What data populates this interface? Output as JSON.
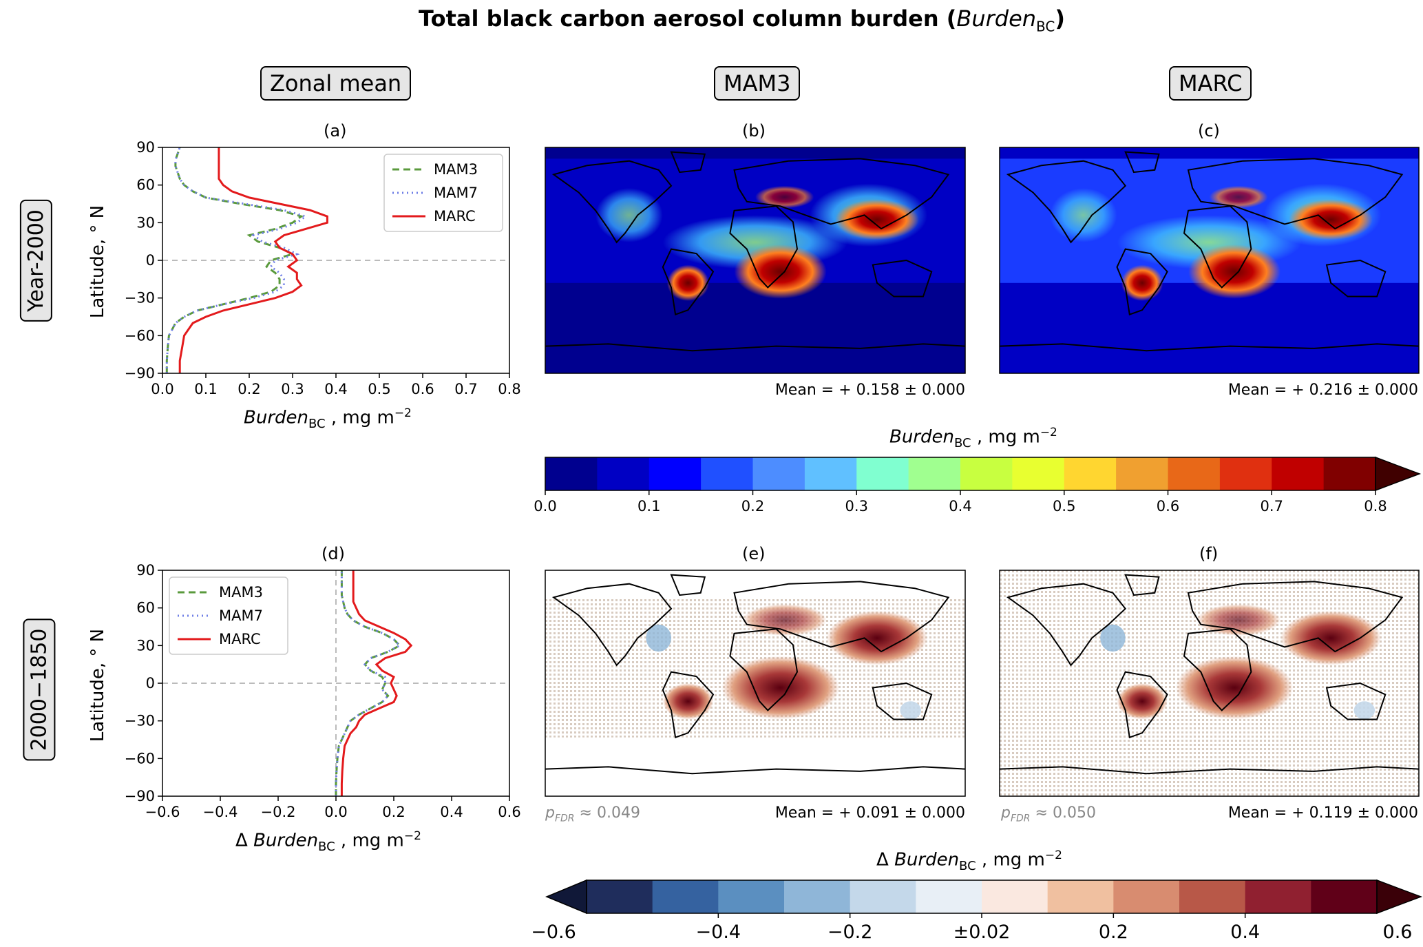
{
  "title_main": "Total black carbon aerosol column burden (",
  "title_var": "Burden",
  "title_sub": "BC",
  "title_end": ")",
  "column_headers": [
    "Zonal mean",
    "MAM3",
    "MARC"
  ],
  "row_headers": [
    "Year-2000",
    "2000−1850"
  ],
  "panel_labels": [
    "(a)",
    "(b)",
    "(c)",
    "(d)",
    "(e)",
    "(f)"
  ],
  "means": {
    "b": "Mean = + 0.158 ± 0.000",
    "c": "Mean = + 0.216 ± 0.000",
    "e": "Mean = + 0.091 ± 0.000",
    "f": "Mean = + 0.119 ± 0.000"
  },
  "pfdr": {
    "e": "≈ 0.049",
    "f": "≈ 0.050"
  },
  "pfdr_label": "p",
  "pfdr_sub": "FDR",
  "colors": {
    "MAM3": "#5a9a3c",
    "MAM7": "#6f7fe6",
    "MARC": "#e31a1c",
    "seq_cmap": [
      "#00008f",
      "#0000c4",
      "#0000ff",
      "#2050ff",
      "#4d8dff",
      "#60c0ff",
      "#80ffd0",
      "#a0ff90",
      "#c8ff40",
      "#e8ff30",
      "#ffd630",
      "#f0a030",
      "#e86818",
      "#e03010",
      "#c00000",
      "#800000"
    ],
    "div_cmap": [
      "#1f2d5c",
      "#3562a0",
      "#5b8fc0",
      "#8fb6d8",
      "#c4d8ea",
      "#e8eff6",
      "#fae8e0",
      "#f0c0a0",
      "#d88c70",
      "#b85848",
      "#902030",
      "#600018"
    ]
  },
  "chart_data": [
    {
      "type": "line",
      "panel": "(a)",
      "xlabel": "Burden_BC , mg m^-2",
      "ylabel": "Latitude, °N",
      "xlim": [
        0.0,
        0.8
      ],
      "ylim": [
        -90,
        90
      ],
      "xticks": [
        "0.0",
        "0.1",
        "0.2",
        "0.3",
        "0.4",
        "0.5",
        "0.6",
        "0.7",
        "0.8"
      ],
      "yticks": [
        "−90",
        "−60",
        "−30",
        "0",
        "30",
        "60",
        "90"
      ],
      "legend": "top-right",
      "x": [
        -90,
        -80,
        -70,
        -60,
        -50,
        -45,
        -40,
        -35,
        -30,
        -25,
        -20,
        -15,
        -10,
        -5,
        0,
        5,
        10,
        15,
        20,
        25,
        30,
        35,
        40,
        45,
        50,
        55,
        60,
        65,
        70,
        75,
        80,
        85,
        90
      ],
      "series": [
        {
          "name": "MAM3",
          "style": "dashed",
          "values": [
            0.01,
            0.01,
            0.012,
            0.015,
            0.03,
            0.05,
            0.08,
            0.14,
            0.2,
            0.25,
            0.27,
            0.27,
            0.26,
            0.24,
            0.25,
            0.3,
            0.27,
            0.22,
            0.2,
            0.26,
            0.3,
            0.32,
            0.27,
            0.18,
            0.1,
            0.07,
            0.05,
            0.04,
            0.035,
            0.03,
            0.03,
            0.035,
            0.04
          ]
        },
        {
          "name": "MAM7",
          "style": "dotted",
          "values": [
            0.01,
            0.01,
            0.012,
            0.015,
            0.03,
            0.05,
            0.08,
            0.14,
            0.21,
            0.26,
            0.28,
            0.28,
            0.27,
            0.25,
            0.26,
            0.31,
            0.28,
            0.23,
            0.21,
            0.27,
            0.31,
            0.33,
            0.28,
            0.19,
            0.1,
            0.07,
            0.05,
            0.04,
            0.035,
            0.03,
            0.03,
            0.035,
            0.04
          ]
        },
        {
          "name": "MARC",
          "style": "solid",
          "values": [
            0.04,
            0.04,
            0.045,
            0.05,
            0.07,
            0.1,
            0.14,
            0.2,
            0.26,
            0.3,
            0.32,
            0.31,
            0.31,
            0.29,
            0.31,
            0.3,
            0.27,
            0.26,
            0.28,
            0.33,
            0.38,
            0.38,
            0.34,
            0.27,
            0.2,
            0.16,
            0.14,
            0.13,
            0.13,
            0.13,
            0.13,
            0.13,
            0.13
          ]
        }
      ]
    },
    {
      "type": "line",
      "panel": "(d)",
      "xlabel": "Δ Burden_BC , mg m^-2",
      "ylabel": "Latitude, °N",
      "xlim": [
        -0.6,
        0.6
      ],
      "ylim": [
        -90,
        90
      ],
      "xticks": [
        "−0.6",
        "−0.4",
        "−0.2",
        "0.0",
        "0.2",
        "0.4",
        "0.6"
      ],
      "yticks": [
        "−90",
        "−60",
        "−30",
        "0",
        "30",
        "60",
        "90"
      ],
      "legend": "top-left",
      "x": [
        -90,
        -80,
        -70,
        -60,
        -50,
        -45,
        -40,
        -35,
        -30,
        -25,
        -20,
        -15,
        -10,
        -5,
        0,
        5,
        10,
        15,
        20,
        25,
        30,
        35,
        40,
        45,
        50,
        55,
        60,
        65,
        70,
        75,
        80,
        85,
        90
      ],
      "series": [
        {
          "name": "MAM3",
          "style": "dashed",
          "values": [
            0.0,
            0.0,
            0.002,
            0.005,
            0.01,
            0.02,
            0.03,
            0.04,
            0.05,
            0.08,
            0.12,
            0.16,
            0.18,
            0.16,
            0.17,
            0.16,
            0.12,
            0.1,
            0.12,
            0.18,
            0.22,
            0.2,
            0.16,
            0.1,
            0.06,
            0.04,
            0.03,
            0.025,
            0.02,
            0.02,
            0.02,
            0.02,
            0.02
          ]
        },
        {
          "name": "MAM7",
          "style": "dotted",
          "values": [
            0.0,
            0.0,
            0.002,
            0.005,
            0.01,
            0.02,
            0.03,
            0.04,
            0.05,
            0.08,
            0.12,
            0.16,
            0.18,
            0.16,
            0.17,
            0.17,
            0.12,
            0.1,
            0.12,
            0.18,
            0.22,
            0.2,
            0.16,
            0.1,
            0.06,
            0.04,
            0.03,
            0.025,
            0.02,
            0.02,
            0.02,
            0.02,
            0.02
          ]
        },
        {
          "name": "MARC",
          "style": "solid",
          "values": [
            0.02,
            0.02,
            0.022,
            0.025,
            0.03,
            0.04,
            0.05,
            0.07,
            0.08,
            0.1,
            0.15,
            0.2,
            0.21,
            0.2,
            0.19,
            0.2,
            0.16,
            0.14,
            0.17,
            0.24,
            0.26,
            0.24,
            0.2,
            0.15,
            0.1,
            0.08,
            0.07,
            0.06,
            0.06,
            0.06,
            0.06,
            0.06,
            0.06
          ]
        }
      ]
    }
  ],
  "colorbars": [
    {
      "label_var": "Burden",
      "label_sub": "BC",
      "label_units": " , mg m",
      "label_exp": "−2",
      "ticks": [
        "0.0",
        "0.1",
        "0.2",
        "0.3",
        "0.4",
        "0.5",
        "0.6",
        "0.7",
        "0.8"
      ]
    },
    {
      "label_prefix": "Δ ",
      "label_var": "Burden",
      "label_sub": "BC",
      "label_units": " , mg m",
      "label_exp": "−2",
      "ticks": [
        "−0.6",
        "−0.4",
        "−0.2",
        "±0.02",
        "0.2",
        "0.4",
        "0.6"
      ]
    }
  ]
}
